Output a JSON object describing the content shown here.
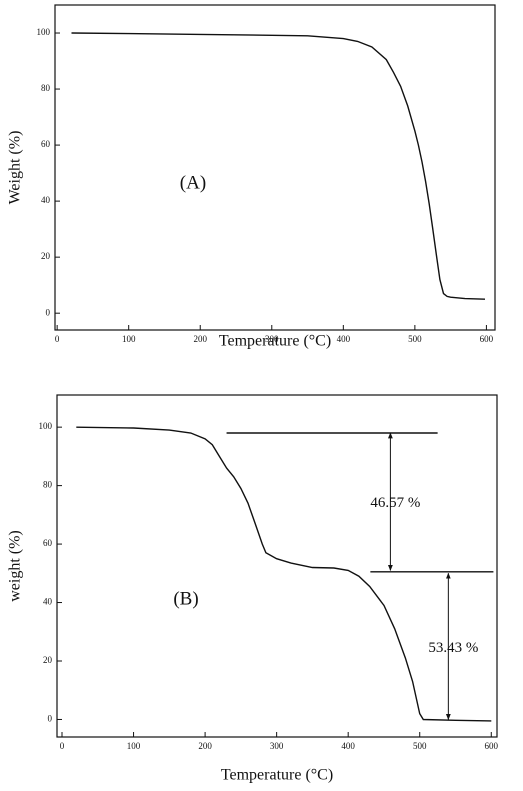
{
  "chart_data": [
    {
      "type": "line",
      "label": "(A)",
      "x_label": "Temperature (°C)",
      "y_label": "Weight  (%)",
      "xlim": [
        -3,
        612
      ],
      "ylim": [
        -6,
        110
      ],
      "xticks": [
        0,
        100,
        200,
        300,
        400,
        500,
        600
      ],
      "yticks": [
        0,
        20,
        40,
        60,
        80,
        100
      ],
      "color": "#111111",
      "x": [
        20,
        100,
        200,
        300,
        350,
        400,
        420,
        440,
        460,
        470,
        480,
        490,
        500,
        505,
        510,
        515,
        520,
        525,
        530,
        535,
        540,
        545,
        550,
        570,
        598
      ],
      "values": [
        100,
        99.8,
        99.5,
        99.2,
        99,
        98,
        97,
        95,
        90.5,
        86,
        81,
        74,
        65,
        60,
        54,
        47,
        39,
        30,
        21,
        12,
        7,
        6,
        5.7,
        5.2,
        5
      ]
    },
    {
      "type": "line",
      "label": "(B)",
      "x_label": "Temperature (°C)",
      "y_label": "weight  (%)",
      "xlim": [
        -7,
        608
      ],
      "ylim": [
        -6,
        111
      ],
      "xticks": [
        0,
        100,
        200,
        300,
        400,
        500,
        600
      ],
      "yticks": [
        0,
        20,
        40,
        60,
        80,
        100
      ],
      "color": "#111111",
      "x": [
        20,
        100,
        150,
        180,
        200,
        210,
        220,
        230,
        240,
        250,
        260,
        270,
        280,
        285,
        300,
        320,
        350,
        380,
        400,
        415,
        430,
        450,
        465,
        480,
        490,
        500,
        505,
        550,
        600
      ],
      "values": [
        100,
        99.7,
        99,
        98,
        96,
        94,
        90,
        86,
        83,
        79,
        74,
        67,
        60,
        57,
        55,
        53.5,
        52,
        51.8,
        51,
        49,
        45.5,
        39,
        31,
        21,
        13,
        2,
        0,
        -0.3,
        -0.5
      ],
      "hlines": [
        {
          "y": 98,
          "x": [
            230,
            525
          ]
        },
        {
          "y": 50.5,
          "x": [
            431,
            603
          ]
        }
      ],
      "annotations": [
        {
          "text": "46.57 %",
          "x": 459,
          "y_from": 98,
          "y_to": 51
        },
        {
          "text": "53.43 %",
          "x": 540,
          "y_from": 50,
          "y_to": 0
        }
      ]
    }
  ]
}
